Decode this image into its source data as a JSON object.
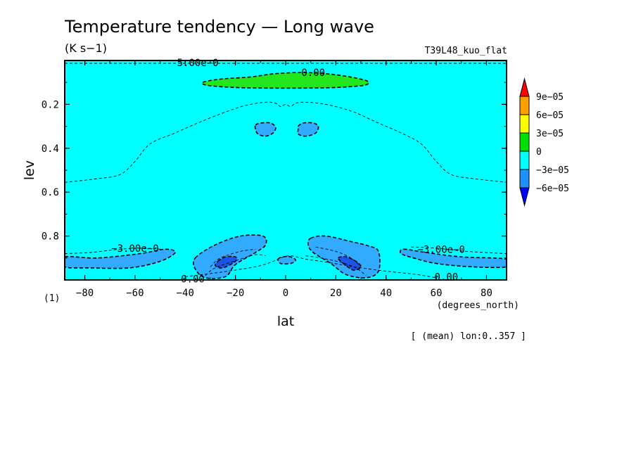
{
  "chart_data": {
    "type": "heatmap",
    "title": "Temperature tendency — Long wave",
    "units": "(K s−1)",
    "run_label": "T39L48_kuo_flat",
    "xlabel": "lat",
    "ylabel": "lev",
    "x_unit": "(degrees_north)",
    "y_unit": "(1)",
    "note": "[ (mean) lon:0..357 ]",
    "xlim": [
      -88,
      88
    ],
    "ylim": [
      0.0,
      1.0
    ],
    "y_inverted": true,
    "x_ticks": [
      {
        "v": -80,
        "label": "−80"
      },
      {
        "v": -60,
        "label": "−60"
      },
      {
        "v": -40,
        "label": "−40"
      },
      {
        "v": -20,
        "label": "−20"
      },
      {
        "v": 0,
        "label": "0"
      },
      {
        "v": 20,
        "label": "20"
      },
      {
        "v": 40,
        "label": "40"
      },
      {
        "v": 60,
        "label": "60"
      },
      {
        "v": 80,
        "label": "80"
      }
    ],
    "y_ticks": [
      {
        "v": 0.2,
        "label": "0.2"
      },
      {
        "v": 0.4,
        "label": "0.4"
      },
      {
        "v": 0.6,
        "label": "0.6"
      },
      {
        "v": 0.8,
        "label": "0.8"
      }
    ],
    "colorbar": {
      "labels": [
        "9e−05",
        "6e−05",
        "3e−05",
        "0",
        "−3e−05",
        "−6e−05"
      ],
      "colors": [
        "#ff0000",
        "#ffa000",
        "#ffff00",
        "#00e000",
        "#00ffff",
        "#1e90ff",
        "#0000ff"
      ]
    },
    "background_color": "#00ffff",
    "regions": [
      {
        "name": "positive-band-top",
        "color": "#22e61e",
        "points": [
          [
            -33,
            0.1
          ],
          [
            -26,
            0.085
          ],
          [
            -14,
            0.075
          ],
          [
            -4,
            0.06
          ],
          [
            8,
            0.055
          ],
          [
            20,
            0.065
          ],
          [
            30,
            0.085
          ],
          [
            33,
            0.1
          ],
          [
            30,
            0.115
          ],
          [
            14,
            0.125
          ],
          [
            -14,
            0.125
          ],
          [
            -30,
            0.115
          ]
        ]
      },
      {
        "name": "left-surface-negative",
        "color": "#32aaff",
        "points": [
          [
            -88,
            0.895
          ],
          [
            -75,
            0.9
          ],
          [
            -58,
            0.88
          ],
          [
            -48,
            0.86
          ],
          [
            -44,
            0.875
          ],
          [
            -50,
            0.915
          ],
          [
            -62,
            0.945
          ],
          [
            -78,
            0.945
          ],
          [
            -88,
            0.94
          ]
        ]
      },
      {
        "name": "right-surface-negative",
        "color": "#32aaff",
        "points": [
          [
            47,
            0.86
          ],
          [
            56,
            0.875
          ],
          [
            70,
            0.895
          ],
          [
            88,
            0.905
          ],
          [
            88,
            0.94
          ],
          [
            74,
            0.94
          ],
          [
            60,
            0.925
          ],
          [
            51,
            0.9
          ],
          [
            46,
            0.88
          ]
        ]
      },
      {
        "name": "left-lobe-negative",
        "color": "#32aaff",
        "points": [
          [
            -36,
            0.9
          ],
          [
            -28,
            0.84
          ],
          [
            -18,
            0.8
          ],
          [
            -9,
            0.8
          ],
          [
            -8,
            0.84
          ],
          [
            -12,
            0.875
          ],
          [
            -20,
            0.93
          ],
          [
            -24,
            0.985
          ],
          [
            -32,
            0.99
          ],
          [
            -36,
            0.95
          ]
        ]
      },
      {
        "name": "right-lobe-negative",
        "color": "#32aaff",
        "points": [
          [
            10,
            0.81
          ],
          [
            16,
            0.8
          ],
          [
            26,
            0.825
          ],
          [
            33,
            0.845
          ],
          [
            37,
            0.87
          ],
          [
            37,
            0.96
          ],
          [
            32,
            0.99
          ],
          [
            24,
            0.975
          ],
          [
            18,
            0.925
          ],
          [
            11,
            0.875
          ],
          [
            9,
            0.84
          ]
        ]
      },
      {
        "name": "left-lobe-core",
        "color": "#1a55ea",
        "points": [
          [
            -27,
            0.915
          ],
          [
            -24,
            0.895
          ],
          [
            -20,
            0.895
          ],
          [
            -20,
            0.915
          ],
          [
            -25,
            0.945
          ],
          [
            -28,
            0.935
          ]
        ]
      },
      {
        "name": "right-lobe-core",
        "color": "#1a55ea",
        "points": [
          [
            21,
            0.9
          ],
          [
            24,
            0.895
          ],
          [
            28,
            0.915
          ],
          [
            30,
            0.94
          ],
          [
            27,
            0.955
          ],
          [
            23,
            0.925
          ]
        ]
      },
      {
        "name": "upper-left-blob",
        "color": "#32aaff",
        "points": [
          [
            -12,
            0.295
          ],
          [
            -10,
            0.285
          ],
          [
            -6,
            0.285
          ],
          [
            -4,
            0.305
          ],
          [
            -5,
            0.33
          ],
          [
            -8,
            0.345
          ],
          [
            -11,
            0.335
          ],
          [
            -12,
            0.315
          ]
        ]
      },
      {
        "name": "upper-right-blob",
        "color": "#32aaff",
        "points": [
          [
            5,
            0.3
          ],
          [
            7,
            0.285
          ],
          [
            11,
            0.285
          ],
          [
            13,
            0.3
          ],
          [
            12,
            0.33
          ],
          [
            8,
            0.345
          ],
          [
            5,
            0.335
          ],
          [
            5,
            0.315
          ]
        ]
      },
      {
        "name": "equator-surface-blob",
        "color": "#32aaff",
        "points": [
          [
            -3,
            0.905
          ],
          [
            -1,
            0.895
          ],
          [
            2,
            0.895
          ],
          [
            4,
            0.91
          ],
          [
            2,
            0.925
          ],
          [
            -2,
            0.925
          ]
        ]
      }
    ],
    "contour_lines": [
      {
        "points": [
          [
            -88,
            0.555
          ],
          [
            -76,
            0.54
          ],
          [
            -66,
            0.52
          ],
          [
            -60,
            0.46
          ],
          [
            -54,
            0.38
          ],
          [
            -44,
            0.33
          ],
          [
            -34,
            0.28
          ],
          [
            -24,
            0.235
          ],
          [
            -16,
            0.205
          ],
          [
            -8,
            0.19
          ],
          [
            -4,
            0.195
          ],
          [
            -2,
            0.21
          ],
          [
            0,
            0.2
          ],
          [
            2,
            0.21
          ],
          [
            4,
            0.195
          ],
          [
            8,
            0.19
          ],
          [
            16,
            0.2
          ],
          [
            26,
            0.23
          ],
          [
            36,
            0.28
          ],
          [
            46,
            0.33
          ],
          [
            54,
            0.38
          ],
          [
            60,
            0.46
          ],
          [
            66,
            0.52
          ],
          [
            76,
            0.54
          ],
          [
            88,
            0.555
          ]
        ]
      },
      {
        "points": [
          [
            -88,
            0.88
          ],
          [
            -78,
            0.875
          ],
          [
            -66,
            0.86
          ],
          [
            -56,
            0.855
          ],
          [
            -50,
            0.86
          ]
        ]
      },
      {
        "points": [
          [
            50,
            0.85
          ],
          [
            60,
            0.855
          ],
          [
            72,
            0.87
          ],
          [
            88,
            0.88
          ]
        ]
      },
      {
        "points": [
          [
            -32,
            0.98
          ],
          [
            -28,
            0.945
          ],
          [
            -18,
            0.905
          ],
          [
            -12,
            0.885
          ],
          [
            -8,
            0.89
          ]
        ]
      },
      {
        "points": [
          [
            -30,
            0.94
          ],
          [
            -26,
            0.9
          ],
          [
            -18,
            0.87
          ],
          [
            -12,
            0.86
          ]
        ]
      },
      {
        "points": [
          [
            12,
            0.85
          ],
          [
            20,
            0.87
          ],
          [
            26,
            0.9
          ],
          [
            30,
            0.94
          ]
        ]
      },
      {
        "points": [
          [
            8,
            0.89
          ],
          [
            14,
            0.9
          ],
          [
            22,
            0.92
          ],
          [
            28,
            0.945
          ],
          [
            32,
            0.98
          ]
        ]
      },
      {
        "points": [
          [
            -40,
            0.985
          ],
          [
            -26,
            0.965
          ],
          [
            -12,
            0.94
          ],
          [
            -6,
            0.92
          ],
          [
            -2,
            0.9
          ],
          [
            2,
            0.89
          ],
          [
            8,
            0.905
          ],
          [
            14,
            0.915
          ],
          [
            22,
            0.93
          ],
          [
            30,
            0.945
          ],
          [
            40,
            0.96
          ],
          [
            52,
            0.975
          ],
          [
            60,
            0.99
          ]
        ]
      }
    ],
    "contour_labels": [
      {
        "text": "0.00",
        "x": 11,
        "y": 0.055
      },
      {
        "text": "5.00e−0",
        "x": -35,
        "y": 0.01
      },
      {
        "text": "−3.00e−0",
        "x": -60,
        "y": 0.855
      },
      {
        "text": "−3.00e−0",
        "x": 62,
        "y": 0.86
      },
      {
        "text": "0.00",
        "x": -37,
        "y": 0.995
      },
      {
        "text": "0.00",
        "x": 64,
        "y": 0.985
      }
    ]
  }
}
